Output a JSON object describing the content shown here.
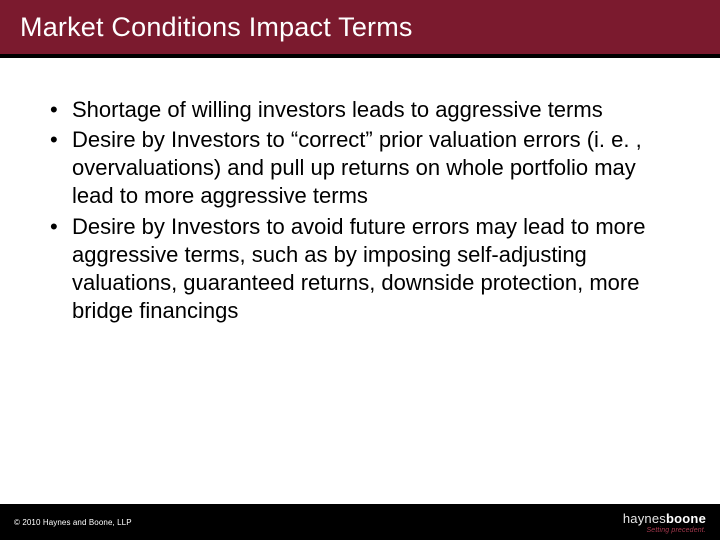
{
  "colors": {
    "title_bar_bg": "#7b1a2e",
    "title_text": "#ffffff",
    "body_text": "#000000",
    "footer_bg": "#000000",
    "footer_text": "#ffffff",
    "logo_tag": "#a83a4f",
    "slide_bg": "#ffffff",
    "divider": "#000000"
  },
  "typography": {
    "title_fontsize_pt": 27,
    "body_fontsize_pt": 22,
    "copyright_fontsize_pt": 8,
    "logo_fontsize_pt": 13,
    "logo_tag_fontsize_pt": 7,
    "font_family": "Arial"
  },
  "header": {
    "title": "Market Conditions Impact Terms"
  },
  "body": {
    "bullets": [
      "Shortage of willing investors leads to aggressive terms",
      "Desire by Investors to “correct” prior valuation errors (i. e. , overvaluations) and pull up returns on whole portfolio may lead to more aggressive terms",
      "Desire by Investors to avoid future errors may lead to more aggressive terms, such as by imposing self-adjusting valuations, guaranteed returns, downside protection, more bridge financings"
    ]
  },
  "footer": {
    "copyright": "© 2010 Haynes and Boone, LLP",
    "logo_thin": "haynes",
    "logo_bold": "boone",
    "logo_tagline": "Setting precedent."
  }
}
